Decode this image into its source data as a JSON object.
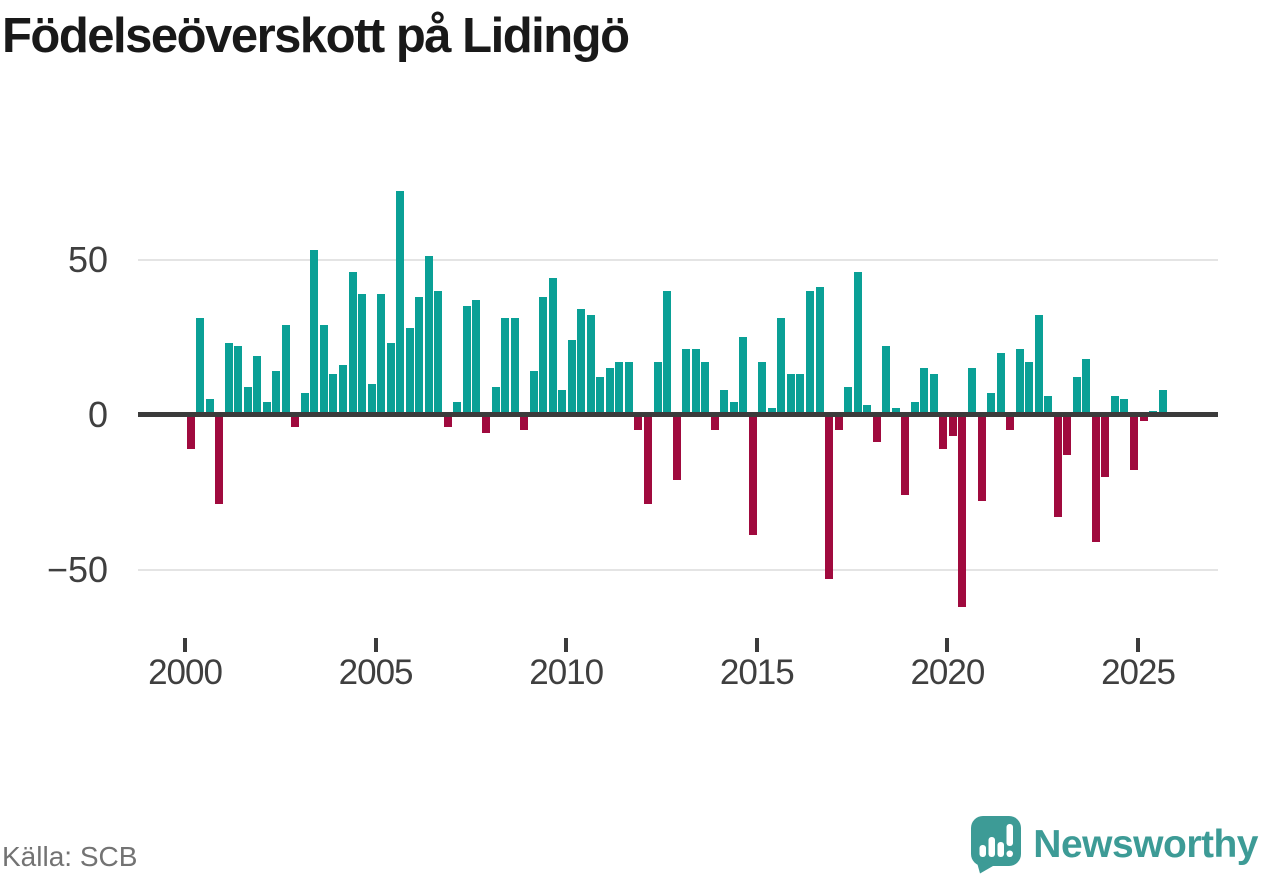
{
  "title": "Födelseöverskott på Lidingö",
  "source": "Källa: SCB",
  "brand": {
    "name": "Newsworthy",
    "logo_icon": "newsworthy-chart-bubble-icon",
    "color": "#3d9b96"
  },
  "colors": {
    "positive": "#0aa096",
    "negative": "#a00a3e",
    "axis": "#3b3b3b",
    "grid": "#e4e4e4",
    "tick_label": "#3f3f3f"
  },
  "y_axis": {
    "ticks": [
      {
        "label": "50",
        "value": 50
      },
      {
        "label": "0",
        "value": 0
      },
      {
        "label": "−50",
        "value": -50
      }
    ]
  },
  "x_axis": {
    "ticks": [
      {
        "label": "2000",
        "year": 2000
      },
      {
        "label": "2005",
        "year": 2005
      },
      {
        "label": "2010",
        "year": 2010
      },
      {
        "label": "2015",
        "year": 2015
      },
      {
        "label": "2020",
        "year": 2020
      },
      {
        "label": "2025",
        "year": 2025
      }
    ]
  },
  "chart_data": {
    "type": "bar",
    "title": "Födelseöverskott på Lidingö",
    "frequency": "quarterly",
    "start_period": "2000-Q1",
    "end_period": "2025-Q3",
    "gridlines": [
      50,
      0,
      -50
    ],
    "ylim": [
      -65,
      80
    ],
    "legend": "none",
    "positive_color": "#0aa096",
    "negative_color": "#a00a3e",
    "values": [
      -11,
      31,
      5,
      -29,
      23,
      22,
      9,
      19,
      4,
      14,
      29,
      -4,
      7,
      53,
      29,
      13,
      16,
      46,
      39,
      10,
      39,
      23,
      72,
      28,
      38,
      51,
      40,
      -4,
      4,
      35,
      37,
      -6,
      9,
      31,
      31,
      -5,
      14,
      38,
      44,
      8,
      24,
      34,
      32,
      12,
      15,
      17,
      17,
      -5,
      -29,
      17,
      40,
      -21,
      21,
      21,
      17,
      -5,
      8,
      4,
      25,
      -39,
      17,
      2,
      31,
      13,
      13,
      40,
      41,
      -53,
      -5,
      9,
      46,
      3,
      -9,
      22,
      2,
      -26,
      4,
      15,
      13,
      -11,
      -7,
      -62,
      15,
      -28,
      7,
      20,
      -5,
      21,
      17,
      32,
      6,
      -33,
      -13,
      12,
      18,
      -41,
      -20,
      6,
      5,
      -18,
      -2,
      1,
      8
    ]
  }
}
